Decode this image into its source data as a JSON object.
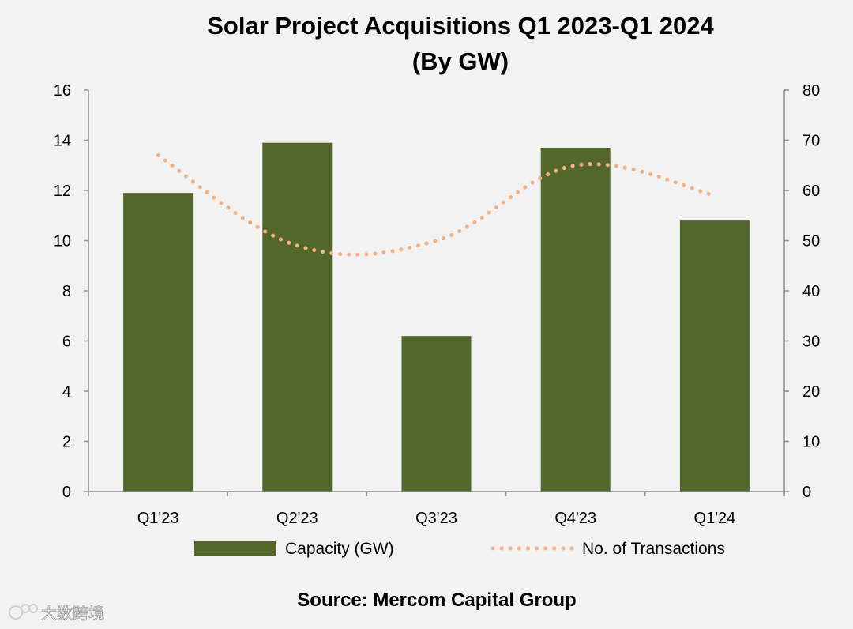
{
  "chart_data": {
    "type": "bar",
    "title": "Solar Project Acquisitions Q1 2023-Q1 2024",
    "subtitle": "(By GW)",
    "categories": [
      "Q1'23",
      "Q2'23",
      "Q3'23",
      "Q4'23",
      "Q1'24"
    ],
    "series": [
      {
        "name": "Capacity (GW)",
        "kind": "bar",
        "axis": "left",
        "values": [
          11.9,
          13.9,
          6.2,
          13.7,
          10.8
        ]
      },
      {
        "name": "No. of Transactions",
        "kind": "dotted-line",
        "axis": "right",
        "values": [
          67,
          49,
          50,
          65,
          59
        ]
      }
    ],
    "ylim_left": [
      0,
      16
    ],
    "yticks_left": [
      "0",
      "2",
      "4",
      "6",
      "8",
      "10",
      "12",
      "14",
      "16"
    ],
    "ylim_right": [
      0,
      80
    ],
    "yticks_right": [
      "0",
      "10",
      "20",
      "30",
      "40",
      "50",
      "60",
      "70",
      "80"
    ],
    "xlabel": "",
    "ylabel": "",
    "grid": false,
    "legend_position": "bottom",
    "source": "Source: Mercom Capital Group"
  },
  "colors": {
    "bar": "#54672a",
    "line": "#f2b183",
    "axis": "#8c8c8c",
    "background": "#f2f2f2"
  },
  "watermark": "大数跨境"
}
